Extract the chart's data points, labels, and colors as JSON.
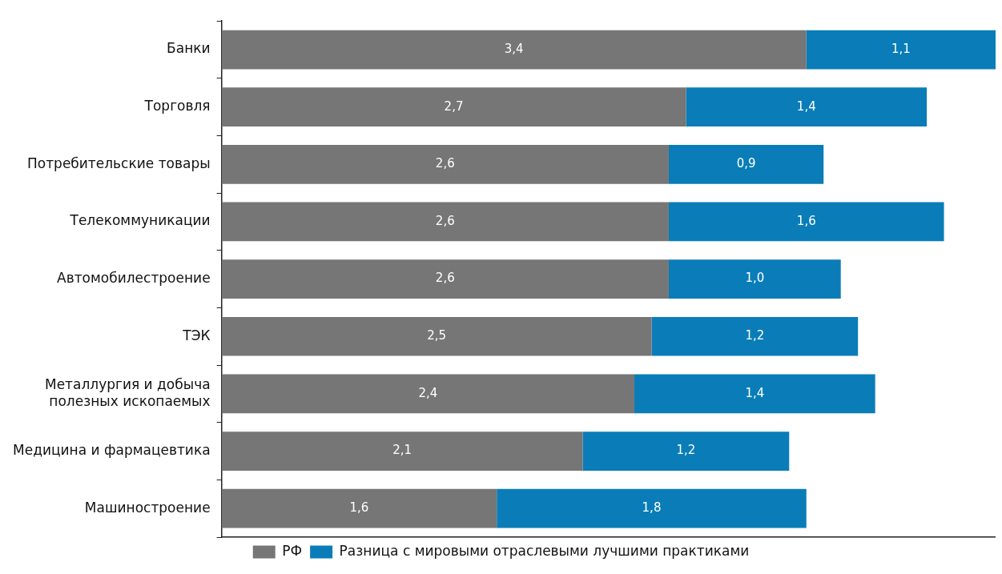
{
  "chart_data": {
    "type": "bar",
    "orientation": "horizontal",
    "stacked": true,
    "legend": "bottom",
    "tick_labels": "y",
    "grid": false,
    "categories": [
      "Банки",
      "Торговля",
      "Потребительские товары",
      "Телекоммуникации",
      "Автомобилестроение",
      "ТЭК",
      "Металлургия и добыча\nполезных ископаемых",
      "Медицина и фармацевтика",
      "Машиностроение"
    ],
    "series": [
      {
        "name": "РФ",
        "color": "#767676",
        "values": [
          3.4,
          2.7,
          2.6,
          2.6,
          2.6,
          2.5,
          2.4,
          2.1,
          1.6
        ],
        "value_labels": [
          "3,4",
          "2,7",
          "2,6",
          "2,6",
          "2,6",
          "2,5",
          "2,4",
          "2,1",
          "1,6"
        ]
      },
      {
        "name": "Разница с мировыми отраслевыми лучшими практиками",
        "color": "#0a7db8",
        "values": [
          1.1,
          1.4,
          0.9,
          1.6,
          1.0,
          1.2,
          1.4,
          1.2,
          1.8
        ],
        "value_labels": [
          "1,1",
          "1,4",
          "0,9",
          "1,6",
          "1,0",
          "1,2",
          "1,4",
          "1,2",
          "1,8"
        ]
      }
    ]
  }
}
